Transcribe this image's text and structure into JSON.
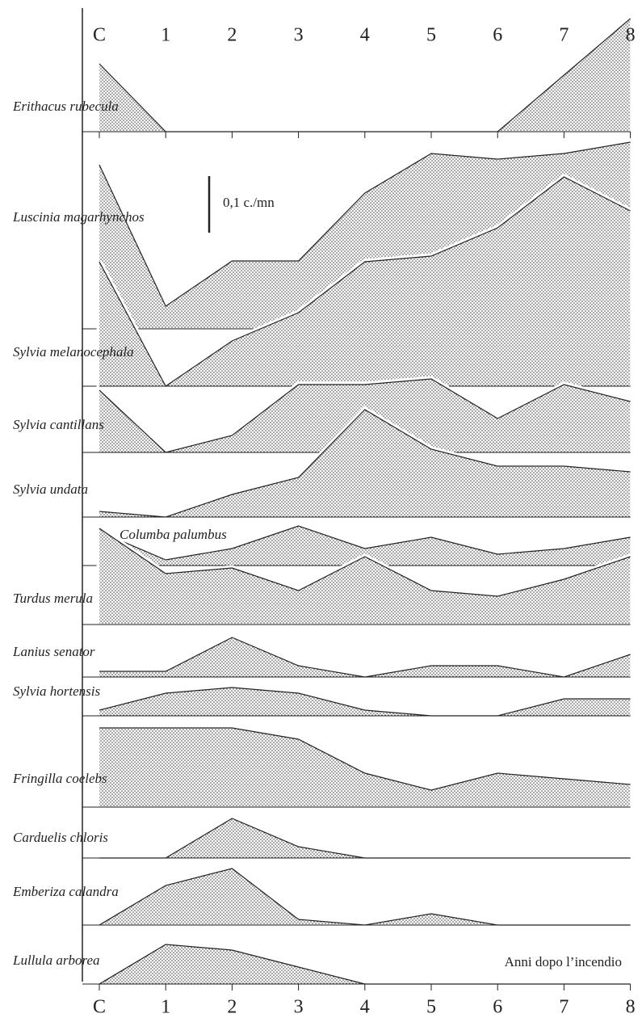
{
  "chart_data": {
    "type": "area",
    "categories": [
      "C",
      "1",
      "2",
      "3",
      "4",
      "5",
      "6",
      "7",
      "8"
    ],
    "x_label": "Anni dopo l’incendio",
    "scale_bar": {
      "value": 0.1,
      "label": "0,1 c./mn"
    },
    "color": "#222222",
    "series": [
      {
        "name": "Erithacus rubecula",
        "values": [
          0.12,
          0,
          0,
          0,
          0,
          0,
          0,
          0.1,
          0.2
        ]
      },
      {
        "name": "Luscinia magarhynchos",
        "values": [
          0.29,
          0.04,
          0.12,
          0.12,
          0.24,
          0.31,
          0.3,
          0.31,
          0.33
        ]
      },
      {
        "name": "Sylvia melanocephala",
        "values": [
          0.22,
          0,
          0.08,
          0.13,
          0.22,
          0.23,
          0.28,
          0.37,
          0.31
        ]
      },
      {
        "name": "Sylvia cantillans",
        "values": [
          0.11,
          0,
          0.03,
          0.12,
          0.12,
          0.13,
          0.06,
          0.12,
          0.09
        ]
      },
      {
        "name": "Sylvia undata",
        "values": [
          0.01,
          0,
          0.04,
          0.07,
          0.19,
          0.12,
          0.09,
          0.09,
          0.08
        ]
      },
      {
        "name": "Columba palumbus",
        "values": [
          0.06,
          0.01,
          0.03,
          0.07,
          0.03,
          0.05,
          0.02,
          0.03,
          0.05
        ]
      },
      {
        "name": "Turdus merula",
        "values": [
          0.17,
          0.09,
          0.1,
          0.06,
          0.12,
          0.06,
          0.05,
          0.08,
          0.12
        ]
      },
      {
        "name": "Lanius senator",
        "values": [
          0.01,
          0.01,
          0.07,
          0.02,
          0,
          0.02,
          0.02,
          0,
          0.04
        ]
      },
      {
        "name": "Sylvia hortensis",
        "values": [
          0.01,
          0.04,
          0.05,
          0.04,
          0.01,
          0,
          0,
          0.03,
          0.03
        ]
      },
      {
        "name": "Fringilla coelebs",
        "values": [
          0.14,
          0.14,
          0.14,
          0.12,
          0.06,
          0.03,
          0.06,
          0.05,
          0.04
        ]
      },
      {
        "name": "Carduelis chloris",
        "values": [
          0,
          0,
          0.07,
          0.02,
          0,
          0,
          0,
          0,
          0
        ]
      },
      {
        "name": "Emberiza calandra",
        "values": [
          0,
          0.07,
          0.1,
          0.01,
          0,
          0.02,
          0,
          0,
          0
        ]
      },
      {
        "name": "Lullula arborea",
        "values": [
          0,
          0.07,
          0.06,
          0.03,
          0,
          0,
          0,
          0,
          0
        ]
      }
    ]
  }
}
